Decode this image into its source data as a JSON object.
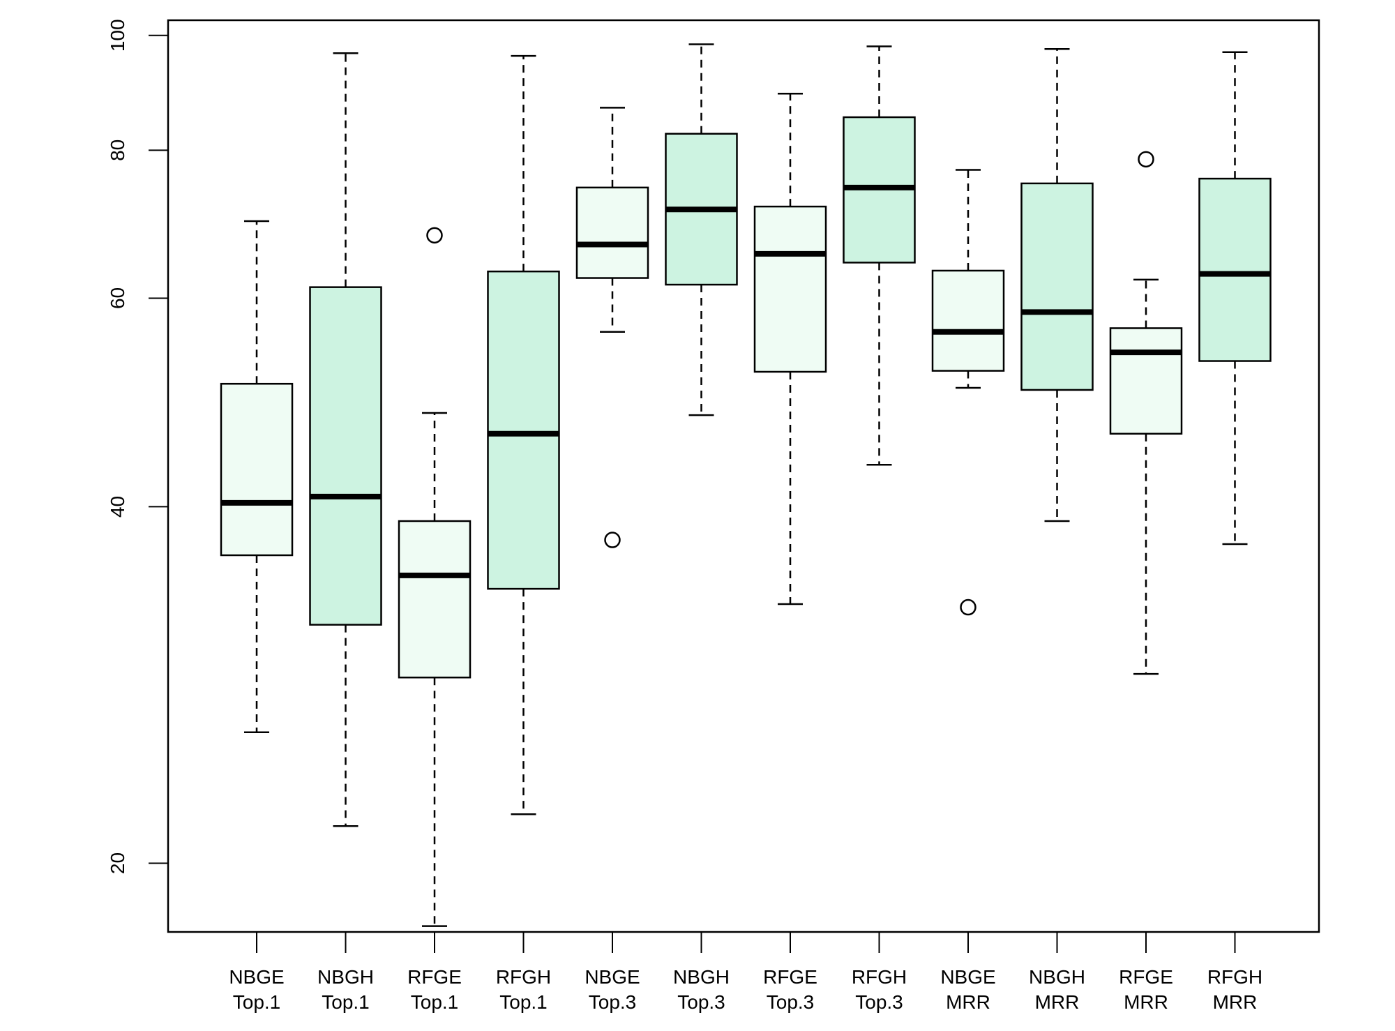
{
  "chart_data": {
    "type": "box",
    "title": "",
    "xlabel": "",
    "ylabel": "",
    "y_scale": "log",
    "ylim": [
      17.5,
      103
    ],
    "y_ticks": [
      "20",
      "40",
      "60",
      "80",
      "100"
    ],
    "grid": false,
    "legend": "none",
    "colors": {
      "light": "#effcf4",
      "dark": "#cdf3e1",
      "stroke": "#000000"
    },
    "boxes": [
      {
        "label_1": "NBGE",
        "label_2": "Top.1",
        "fill": "light",
        "min": 25.8,
        "q1": 36.4,
        "median": 40.3,
        "q3": 50.8,
        "max": 69.7,
        "outliers": []
      },
      {
        "label_1": "NBGH",
        "label_2": "Top.1",
        "fill": "dark",
        "min": 21.5,
        "q1": 31.8,
        "median": 40.8,
        "q3": 61.3,
        "max": 96.6,
        "outliers": []
      },
      {
        "label_1": "RFGE",
        "label_2": "Top.1",
        "fill": "light",
        "min": 17.7,
        "q1": 28.7,
        "median": 35.0,
        "q3": 38.9,
        "max": 48.0,
        "outliers": [
          67.8
        ]
      },
      {
        "label_1": "RFGH",
        "label_2": "Top.1",
        "fill": "dark",
        "min": 22.0,
        "q1": 34.1,
        "median": 46.1,
        "q3": 63.2,
        "max": 96.1,
        "outliers": []
      },
      {
        "label_1": "NBGE",
        "label_2": "Top.3",
        "fill": "light",
        "min": 56.2,
        "q1": 62.4,
        "median": 66.6,
        "q3": 74.4,
        "max": 86.9,
        "outliers": [
          37.5
        ]
      },
      {
        "label_1": "NBGH",
        "label_2": "Top.3",
        "fill": "dark",
        "min": 47.8,
        "q1": 61.6,
        "median": 71.3,
        "q3": 82.6,
        "max": 98.3,
        "outliers": []
      },
      {
        "label_1": "RFGE",
        "label_2": "Top.3",
        "fill": "light",
        "min": 33.1,
        "q1": 52.0,
        "median": 65.4,
        "q3": 71.7,
        "max": 89.3,
        "outliers": []
      },
      {
        "label_1": "RFGH",
        "label_2": "Top.3",
        "fill": "dark",
        "min": 43.4,
        "q1": 64.3,
        "median": 74.4,
        "q3": 85.3,
        "max": 97.9,
        "outliers": []
      },
      {
        "label_1": "NBGE",
        "label_2": "MRR",
        "fill": "light",
        "min": 50.4,
        "q1": 52.1,
        "median": 56.2,
        "q3": 63.3,
        "max": 77.0,
        "outliers": [
          32.9
        ]
      },
      {
        "label_1": "NBGH",
        "label_2": "MRR",
        "fill": "dark",
        "min": 38.9,
        "q1": 50.2,
        "median": 58.4,
        "q3": 75.0,
        "max": 97.4,
        "outliers": []
      },
      {
        "label_1": "RFGE",
        "label_2": "MRR",
        "fill": "light",
        "min": 28.9,
        "q1": 46.1,
        "median": 54.0,
        "q3": 56.6,
        "max": 62.2,
        "outliers": [
          78.6
        ]
      },
      {
        "label_1": "RFGH",
        "label_2": "MRR",
        "fill": "dark",
        "min": 37.2,
        "q1": 53.1,
        "median": 62.9,
        "q3": 75.7,
        "max": 96.8,
        "outliers": []
      }
    ]
  }
}
